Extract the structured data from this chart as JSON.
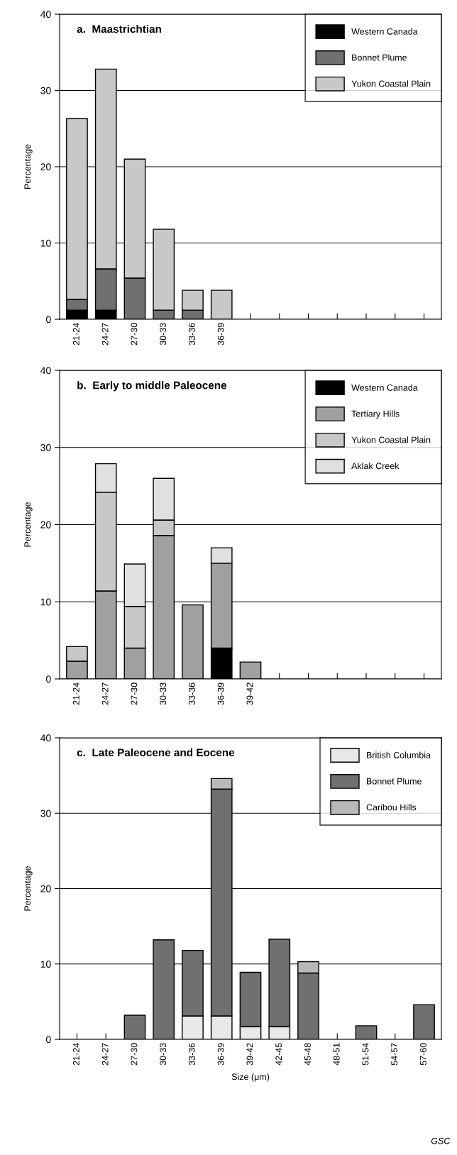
{
  "chart_data": [
    {
      "type": "bar",
      "title": "a.  Maastrichtian",
      "ylabel": "Percentage",
      "stacked": true,
      "grid": "y",
      "legend": "top right",
      "categories": [
        "21-24",
        "24-27",
        "27-30",
        "30-33",
        "33-36",
        "36-39",
        null,
        null,
        null,
        null,
        null,
        null,
        null
      ],
      "ylim": [
        0,
        40
      ],
      "yticks": [
        0,
        10,
        20,
        30,
        40
      ],
      "series": [
        {
          "name": "Western Canada",
          "color": "#000000",
          "values": [
            1.2,
            1.2,
            null,
            null,
            null,
            null,
            null,
            null,
            null,
            null,
            null,
            null,
            null
          ]
        },
        {
          "name": "Bonnet Plume",
          "color": "#707070",
          "values": [
            1.4,
            5.4,
            5.4,
            1.2,
            1.2,
            null,
            null,
            null,
            null,
            null,
            null,
            null,
            null
          ]
        },
        {
          "name": "Yukon Coastal Plain",
          "color": "#c8c8c8",
          "values": [
            23.7,
            26.2,
            15.6,
            10.6,
            2.6,
            3.8,
            null,
            null,
            null,
            null,
            null,
            null,
            null
          ]
        }
      ]
    },
    {
      "type": "bar",
      "title": "b.  Early to middle Paleocene",
      "ylabel": "Percentage",
      "stacked": true,
      "grid": "y",
      "legend": "top right",
      "categories": [
        "21-24",
        "24-27",
        "27-30",
        "30-33",
        "33-36",
        "36-39",
        "39-42",
        null,
        null,
        null,
        null,
        null,
        null
      ],
      "ylim": [
        0,
        40
      ],
      "yticks": [
        0,
        10,
        20,
        30,
        40
      ],
      "series": [
        {
          "name": "Western Canada",
          "color": "#000000",
          "values": [
            null,
            null,
            null,
            null,
            null,
            4.0,
            null,
            null,
            null,
            null,
            null,
            null,
            null
          ]
        },
        {
          "name": "Tertiary Hills",
          "color": "#a0a0a0",
          "values": [
            2.3,
            11.4,
            4.0,
            18.6,
            9.6,
            11.0,
            2.2,
            null,
            null,
            null,
            null,
            null,
            null
          ]
        },
        {
          "name": "Yukon Coastal Plain",
          "color": "#c8c8c8",
          "values": [
            1.9,
            12.8,
            5.4,
            2.0,
            null,
            null,
            null,
            null,
            null,
            null,
            null,
            null,
            null
          ]
        },
        {
          "name": "Aklak Creek",
          "color": "#e0e0e0",
          "values": [
            null,
            3.7,
            5.5,
            5.4,
            null,
            2.0,
            null,
            null,
            null,
            null,
            null,
            null,
            null
          ]
        }
      ]
    },
    {
      "type": "bar",
      "title": "c.  Late Paleocene and Eocene",
      "ylabel": "Percentage",
      "xlabel": "Size (μm)",
      "stacked": true,
      "grid": "y",
      "legend": "top right",
      "categories": [
        "21-24",
        "24-27",
        "27-30",
        "30-33",
        "33-36",
        "36-39",
        "39-42",
        "42-45",
        "45-48",
        "48-51",
        "51-54",
        "54-57",
        "57-60"
      ],
      "ylim": [
        0,
        40
      ],
      "yticks": [
        0,
        10,
        20,
        30,
        40
      ],
      "series": [
        {
          "name": "British Columbia",
          "color": "#e8e8e8",
          "values": [
            null,
            null,
            null,
            null,
            3.1,
            3.1,
            1.7,
            1.7,
            null,
            null,
            null,
            null,
            null
          ]
        },
        {
          "name": "Bonnet Plume",
          "color": "#707070",
          "values": [
            null,
            null,
            3.2,
            13.2,
            8.7,
            30.1,
            7.2,
            11.6,
            8.8,
            null,
            1.8,
            null,
            4.6
          ]
        },
        {
          "name": "Caribou Hills",
          "color": "#b8b8b8",
          "values": [
            null,
            null,
            null,
            null,
            null,
            1.4,
            null,
            null,
            1.5,
            null,
            null,
            null,
            null
          ]
        }
      ],
      "annotations": [
        "GSC"
      ]
    }
  ]
}
